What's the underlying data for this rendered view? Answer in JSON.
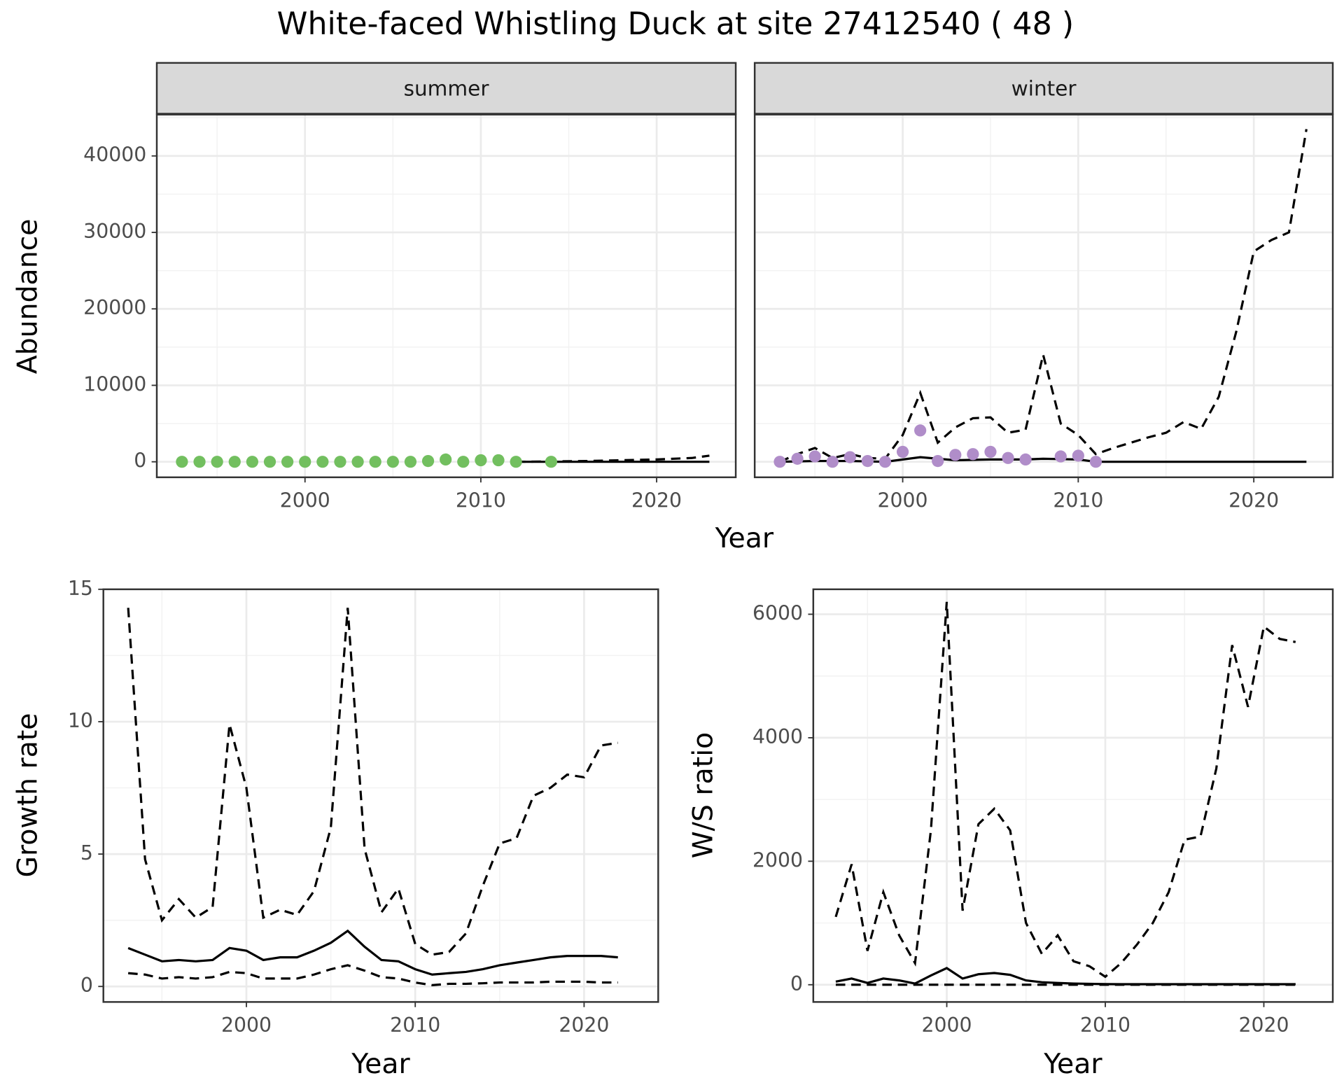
{
  "title": "White-faced Whistling Duck at site 27412540 ( 48 )",
  "chart_data": [
    {
      "type": "facet-line",
      "x_label": "Year",
      "y_label": "Abundance",
      "xlim": [
        1991.57,
        2024.5
      ],
      "ylim": [
        -2028,
        45408
      ],
      "xticks": [
        2000,
        2010,
        2020
      ],
      "yticks": [
        0,
        10000,
        20000,
        30000,
        40000
      ],
      "grid": true,
      "facets": [
        {
          "label": "summer",
          "series": [
            {
              "style": "solid",
              "color": "#000000",
              "x": [
                2012,
                2014,
                2016,
                2018,
                2020,
                2022,
                2023
              ],
              "values": [
                0,
                0,
                0,
                0,
                0,
                0,
                0
              ]
            },
            {
              "style": "dashed",
              "color": "#000000",
              "x": [
                2012,
                2014,
                2016,
                2018,
                2020,
                2022,
                2023
              ],
              "values": [
                0,
                50,
                100,
                200,
                300,
                500,
                800
              ]
            },
            {
              "style": "points",
              "color": "#72bf5f",
              "x": [
                1993,
                1994,
                1995,
                1996,
                1997,
                1998,
                1999,
                2000,
                2001,
                2002,
                2003,
                2004,
                2005,
                2006,
                2007,
                2008,
                2009,
                2010,
                2011,
                2012,
                2014
              ],
              "values": [
                0,
                0,
                0,
                0,
                0,
                0,
                0,
                0,
                0,
                0,
                0,
                0,
                0,
                0,
                100,
                300,
                0,
                200,
                200,
                0,
                0
              ]
            }
          ]
        },
        {
          "label": "winter",
          "series": [
            {
              "style": "solid",
              "color": "#000000",
              "x": [
                1993,
                1995,
                1997,
                1999,
                2001,
                2003,
                2005,
                2007,
                2008,
                2010,
                2011,
                2015,
                2020,
                2023
              ],
              "values": [
                0,
                100,
                100,
                0,
                600,
                200,
                300,
                300,
                400,
                300,
                0,
                0,
                0,
                0
              ]
            },
            {
              "style": "dashed",
              "color": "#000000",
              "x": [
                1993,
                1994,
                1995,
                1996,
                1997,
                1998,
                1999,
                2000,
                2001,
                2002,
                2003,
                2004,
                2005,
                2006,
                2007,
                2008,
                2009,
                2010,
                2011,
                2012,
                2013,
                2014,
                2015,
                2016,
                2017,
                2018,
                2019,
                2020,
                2021,
                2022,
                2023
              ],
              "values": [
                0,
                1000,
                1800,
                500,
                1000,
                500,
                400,
                3500,
                9000,
                2500,
                4500,
                5700,
                5800,
                3800,
                4200,
                14000,
                5000,
                3500,
                1000,
                1800,
                2500,
                3200,
                3800,
                5200,
                4300,
                8500,
                17000,
                27500,
                29000,
                30000,
                43500
              ]
            },
            {
              "style": "points",
              "color": "#b08dc9",
              "x": [
                1993,
                1994,
                1995,
                1996,
                1997,
                1998,
                1999,
                2000,
                2001,
                2002,
                2003,
                2004,
                2005,
                2006,
                2007,
                2009,
                2010,
                2011
              ],
              "values": [
                0,
                400,
                700,
                0,
                600,
                100,
                0,
                1300,
                4100,
                100,
                900,
                1000,
                1300,
                500,
                300,
                700,
                800,
                0
              ]
            }
          ]
        }
      ]
    },
    {
      "type": "line",
      "x_label": "Year",
      "y_label": "Growth rate",
      "xlim": [
        1991.53,
        2024.39
      ],
      "ylim": [
        -0.586,
        15
      ],
      "xticks": [
        2000,
        2010,
        2020
      ],
      "yticks": [
        0,
        5,
        10,
        15
      ],
      "grid": true,
      "x": [
        1993,
        1994,
        1995,
        1996,
        1997,
        1998,
        1999,
        2000,
        2001,
        2002,
        2003,
        2004,
        2005,
        2006,
        2007,
        2008,
        2009,
        2010,
        2011,
        2012,
        2013,
        2014,
        2015,
        2016,
        2017,
        2018,
        2019,
        2020,
        2021,
        2022
      ],
      "series": [
        {
          "style": "solid",
          "color": "#000000",
          "values": [
            1.45,
            1.2,
            0.95,
            1.0,
            0.95,
            1.0,
            1.45,
            1.35,
            1.0,
            1.1,
            1.1,
            1.35,
            1.65,
            2.1,
            1.5,
            1.0,
            0.95,
            0.65,
            0.45,
            0.5,
            0.55,
            0.65,
            0.8,
            0.9,
            1.0,
            1.1,
            1.15,
            1.15,
            1.15,
            1.1
          ]
        },
        {
          "style": "dashed",
          "color": "#000000",
          "values": [
            14.3,
            4.8,
            2.5,
            3.3,
            2.6,
            3.0,
            9.9,
            7.5,
            2.6,
            2.9,
            2.7,
            3.6,
            6.0,
            14.3,
            5.2,
            2.8,
            3.7,
            1.6,
            1.2,
            1.3,
            2.0,
            3.8,
            5.4,
            5.6,
            7.2,
            7.5,
            8.0,
            7.9,
            9.1,
            9.2
          ]
        },
        {
          "style": "dashed",
          "color": "#000000",
          "values": [
            0.5,
            0.45,
            0.3,
            0.35,
            0.3,
            0.35,
            0.55,
            0.5,
            0.3,
            0.3,
            0.3,
            0.45,
            0.65,
            0.8,
            0.6,
            0.35,
            0.3,
            0.15,
            0.05,
            0.1,
            0.1,
            0.12,
            0.15,
            0.15,
            0.15,
            0.18,
            0.18,
            0.18,
            0.15,
            0.15
          ]
        }
      ]
    },
    {
      "type": "line",
      "x_label": "Year",
      "y_label": "W/S ratio",
      "xlim": [
        1991.58,
        2024.35
      ],
      "ylim": [
        -279,
        6404
      ],
      "xticks": [
        2000,
        2010,
        2020
      ],
      "yticks": [
        0,
        2000,
        4000,
        6000
      ],
      "grid": true,
      "x": [
        1993,
        1994,
        1995,
        1996,
        1997,
        1998,
        1999,
        2000,
        2001,
        2002,
        2003,
        2004,
        2005,
        2006,
        2007,
        2008,
        2009,
        2010,
        2011,
        2012,
        2013,
        2014,
        2015,
        2016,
        2017,
        2018,
        2019,
        2020,
        2021,
        2022
      ],
      "series": [
        {
          "style": "solid",
          "color": "#000000",
          "values": [
            50,
            100,
            30,
            100,
            70,
            20,
            150,
            270,
            100,
            170,
            190,
            160,
            70,
            40,
            30,
            20,
            15,
            10,
            8,
            8,
            8,
            8,
            8,
            8,
            8,
            8,
            8,
            8,
            8,
            8
          ]
        },
        {
          "style": "dashed",
          "color": "#000000",
          "values": [
            1100,
            1950,
            550,
            1500,
            800,
            350,
            2500,
            6200,
            1200,
            2600,
            2850,
            2500,
            1000,
            500,
            800,
            380,
            300,
            130,
            350,
            650,
            1000,
            1500,
            2350,
            2400,
            3500,
            5500,
            4500,
            5800,
            5600,
            5550
          ]
        },
        {
          "style": "dashed",
          "color": "#000000",
          "values": [
            0,
            0,
            0,
            0,
            0,
            0,
            0,
            0,
            0,
            0,
            0,
            0,
            0,
            0,
            0,
            0,
            0,
            0,
            0,
            0,
            0,
            0,
            0,
            0,
            0,
            0,
            0,
            0,
            0,
            0
          ]
        }
      ]
    }
  ]
}
